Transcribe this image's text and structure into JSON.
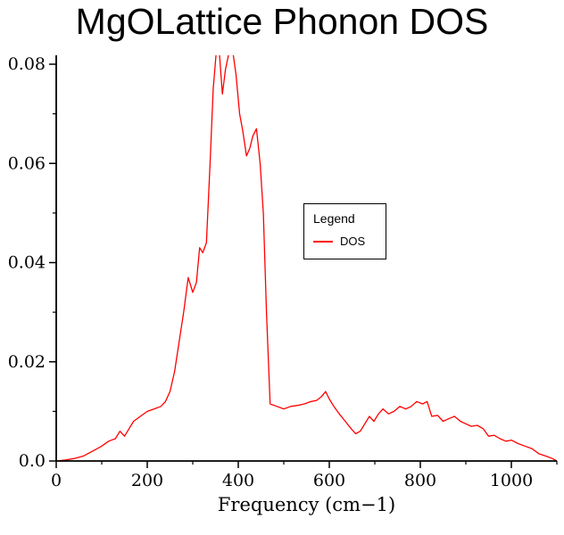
{
  "page": {
    "background": "#ffffff"
  },
  "chart_data": {
    "type": "line",
    "title": "MgOLattice Phonon DOS",
    "xlabel": "Frequency (cm−1)",
    "ylabel": "",
    "xlim": [
      0,
      1100
    ],
    "ylim": [
      0,
      0.0818
    ],
    "grid": false,
    "axis_color": "#000000",
    "x_ticks": [
      0,
      200,
      400,
      600,
      800,
      1000
    ],
    "x_tick_labels": [
      "0",
      "200",
      "400",
      "600",
      "800",
      "1000"
    ],
    "x_minor_ticks": [
      100,
      300,
      500,
      700,
      900,
      1100
    ],
    "y_ticks": [
      0,
      0.02,
      0.04,
      0.06,
      0.08
    ],
    "y_tick_labels": [
      "0.0",
      "0.02",
      "0.04",
      "0.06",
      "0.08"
    ],
    "y_minor_ticks": [
      0.01,
      0.03,
      0.05,
      0.07
    ],
    "legend": {
      "title": "Legend",
      "position": "center",
      "entries": [
        {
          "label": "DOS",
          "color": "#ff0000"
        }
      ]
    },
    "series": [
      {
        "name": "DOS",
        "color": "#ff0000",
        "x": [
          0,
          20,
          40,
          60,
          80,
          100,
          115,
          130,
          140,
          150,
          160,
          170,
          185,
          200,
          215,
          230,
          240,
          250,
          260,
          270,
          280,
          290,
          300,
          308,
          315,
          322,
          330,
          338,
          345,
          352,
          358,
          365,
          372,
          380,
          388,
          395,
          403,
          410,
          418,
          425,
          432,
          440,
          448,
          455,
          462,
          470,
          485,
          500,
          515,
          530,
          545,
          560,
          572,
          583,
          592,
          600,
          610,
          622,
          635,
          648,
          658,
          668,
          678,
          688,
          698,
          708,
          718,
          730,
          742,
          755,
          768,
          780,
          792,
          805,
          815,
          825,
          838,
          850,
          862,
          875,
          888,
          900,
          912,
          925,
          938,
          950,
          962,
          975,
          988,
          1000,
          1015,
          1030,
          1045,
          1060,
          1075,
          1090,
          1100
        ],
        "y": [
          0,
          0.0002,
          0.0005,
          0.001,
          0.002,
          0.003,
          0.004,
          0.0045,
          0.006,
          0.005,
          0.0065,
          0.008,
          0.009,
          0.01,
          0.0105,
          0.011,
          0.012,
          0.014,
          0.018,
          0.024,
          0.03,
          0.037,
          0.034,
          0.036,
          0.043,
          0.042,
          0.044,
          0.06,
          0.075,
          0.0828,
          0.0828,
          0.074,
          0.079,
          0.0825,
          0.0825,
          0.078,
          0.07,
          0.0665,
          0.0615,
          0.063,
          0.0655,
          0.067,
          0.06,
          0.05,
          0.03,
          0.0115,
          0.011,
          0.0105,
          0.011,
          0.0112,
          0.0115,
          0.012,
          0.0122,
          0.013,
          0.014,
          0.0125,
          0.011,
          0.0095,
          0.008,
          0.0065,
          0.0055,
          0.006,
          0.0075,
          0.009,
          0.008,
          0.0095,
          0.0105,
          0.0095,
          0.01,
          0.011,
          0.0105,
          0.011,
          0.012,
          0.0115,
          0.012,
          0.009,
          0.0092,
          0.008,
          0.0085,
          0.009,
          0.008,
          0.0075,
          0.007,
          0.0072,
          0.0065,
          0.005,
          0.0052,
          0.0045,
          0.004,
          0.0042,
          0.0035,
          0.003,
          0.0025,
          0.0015,
          0.001,
          0.0005,
          0
        ]
      }
    ]
  }
}
